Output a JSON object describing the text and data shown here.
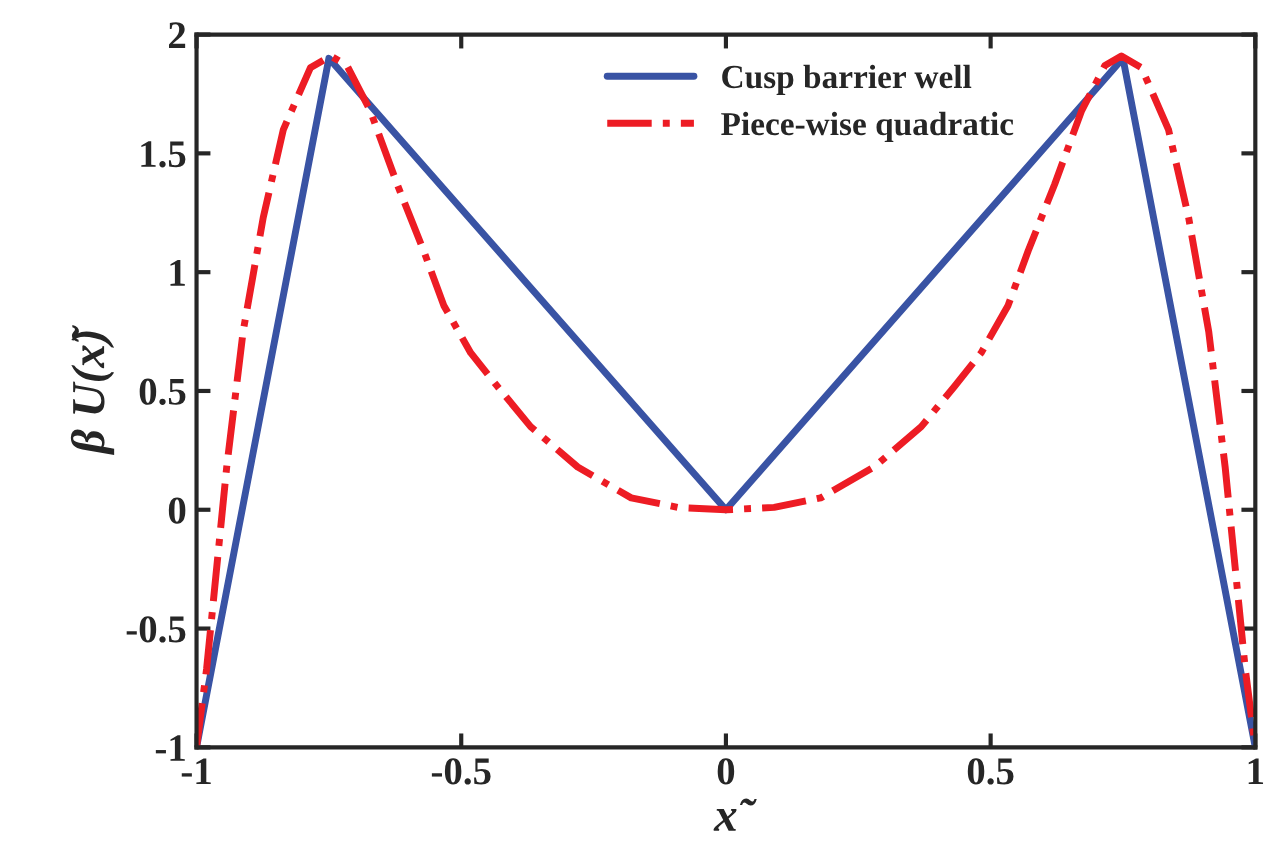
{
  "chart_data": {
    "type": "line",
    "xlabel": "x̃",
    "ylabel": "β U(x̃)",
    "xlim": [
      -1,
      1
    ],
    "ylim": [
      -1,
      2
    ],
    "xticks": [
      -1,
      -0.5,
      0,
      0.5,
      1
    ],
    "yticks": [
      -1,
      -0.5,
      0,
      0.5,
      1,
      1.5,
      2
    ],
    "grid": false,
    "legend": "top",
    "series": [
      {
        "name": "Cusp barrier well",
        "color": "#3953a4",
        "line_style": "solid",
        "x": [
          -1,
          -0.75,
          0,
          0.75,
          1
        ],
        "values": [
          -1,
          1.9,
          0,
          1.9,
          -1
        ]
      },
      {
        "name": "Piece-wise quadratic",
        "color": "#ed1c24",
        "line_style": "dashdot",
        "x": [
          -1,
          -0.981,
          -0.943,
          -0.912,
          -0.874,
          -0.836,
          -0.785,
          -0.747,
          -0.716,
          -0.672,
          -0.621,
          -0.571,
          -0.533,
          -0.482,
          -0.432,
          -0.369,
          -0.28,
          -0.179,
          -0.091,
          0,
          0.091,
          0.179,
          0.28,
          0.369,
          0.432,
          0.482,
          0.533,
          0.571,
          0.621,
          0.672,
          0.716,
          0.747,
          0.785,
          0.836,
          0.874,
          0.912,
          0.943,
          0.981,
          1
        ],
        "values": [
          -1,
          -0.67,
          0.18,
          0.75,
          1.23,
          1.6,
          1.86,
          1.91,
          1.87,
          1.68,
          1.37,
          1.09,
          0.86,
          0.66,
          0.52,
          0.35,
          0.18,
          0.05,
          0.01,
          0,
          0.01,
          0.05,
          0.18,
          0.35,
          0.52,
          0.66,
          0.86,
          1.09,
          1.37,
          1.68,
          1.87,
          1.91,
          1.86,
          1.6,
          1.23,
          0.75,
          0.18,
          -0.67,
          -1
        ]
      }
    ]
  }
}
